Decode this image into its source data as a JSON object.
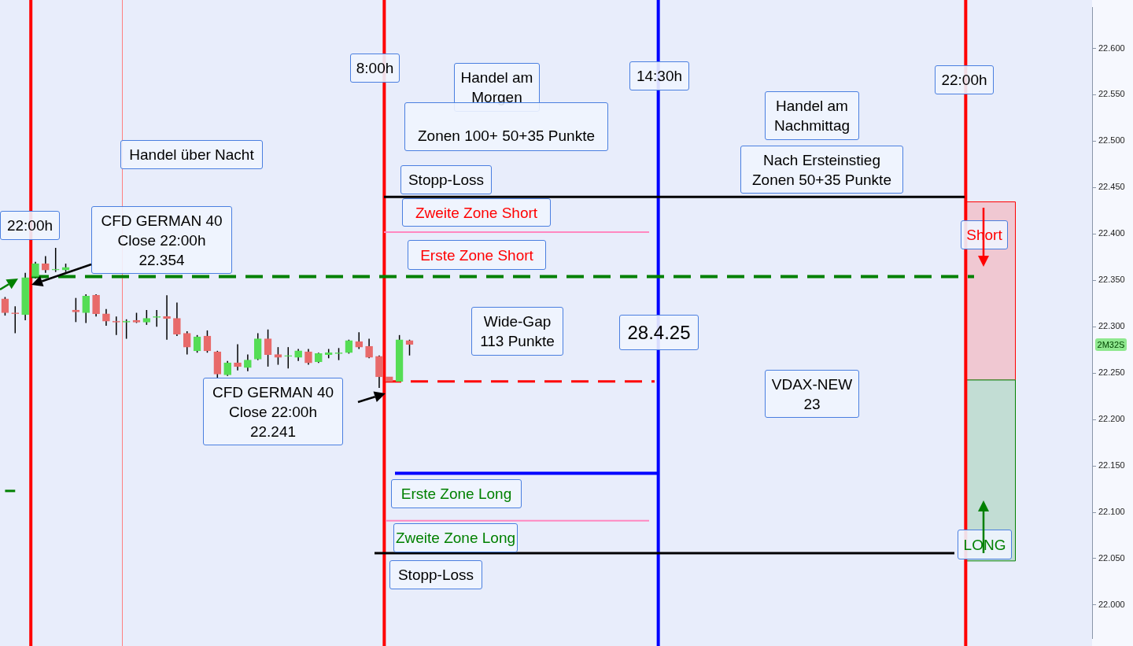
{
  "chart_data": {
    "type": "candlestick",
    "categories": [
      null,
      null,
      null,
      null,
      null,
      null,
      null,
      null,
      null,
      null,
      null,
      null,
      null,
      null,
      null,
      null,
      null,
      null,
      null,
      null,
      null,
      null,
      null,
      null,
      null,
      null,
      null,
      null,
      null,
      null,
      null,
      null,
      null,
      null,
      null,
      null,
      null,
      null,
      null,
      null,
      null,
      null,
      null,
      null,
      null,
      null,
      null,
      null,
      null,
      null,
      null,
      null,
      null,
      null,
      null,
      null,
      null,
      null,
      null,
      null,
      null,
      null,
      null,
      null,
      null,
      null,
      null,
      null,
      null,
      null,
      null,
      null,
      null,
      null,
      null,
      null,
      null,
      null,
      null,
      null,
      null,
      null,
      null,
      null,
      null,
      null,
      null,
      null,
      null,
      null,
      null,
      null,
      null,
      null,
      null,
      null,
      null,
      null,
      null,
      null,
      null,
      null,
      null,
      null,
      null,
      null,
      null,
      null
    ],
    "ohlc": [
      [
        22330,
        22332,
        22312,
        22315
      ],
      [
        22315,
        22322,
        22293,
        22314
      ],
      [
        22313,
        22358,
        22307,
        22353
      ],
      [
        22354,
        22370,
        22352,
        22368
      ],
      [
        22368,
        22376,
        22358,
        22361
      ],
      [
        22361,
        22385,
        22359,
        22362
      ],
      [
        22361,
        22368,
        22359,
        22364
      ],
      [
        22318,
        22331,
        22305,
        22316
      ],
      [
        22315,
        22335,
        22304,
        22333
      ],
      [
        22334,
        22335,
        22311,
        22314
      ],
      [
        22314,
        22319,
        22301,
        22306
      ],
      [
        22306,
        22311,
        22291,
        22305
      ],
      [
        22305,
        22308,
        22287,
        22306
      ],
      [
        22307,
        22315,
        22304,
        22305
      ],
      [
        22305,
        22318,
        22302,
        22309
      ],
      [
        22310,
        22318,
        22300,
        22311
      ],
      [
        22311,
        22334,
        22286,
        22309
      ],
      [
        22309,
        22326,
        22290,
        22292
      ],
      [
        22293,
        22295,
        22270,
        22278
      ],
      [
        22274,
        22291,
        22272,
        22289
      ],
      [
        22290,
        22296,
        22272,
        22274
      ],
      [
        22273,
        22274,
        22244,
        22249
      ],
      [
        22248,
        22263,
        22247,
        22261
      ],
      [
        22261,
        22281,
        22253,
        22257
      ],
      [
        22256,
        22270,
        22252,
        22264
      ],
      [
        22265,
        22293,
        22264,
        22287
      ],
      [
        22287,
        22297,
        22257,
        22270
      ],
      [
        22270,
        22278,
        22259,
        22267
      ],
      [
        22268,
        22278,
        22255,
        22269
      ],
      [
        22267,
        22276,
        22263,
        22274
      ],
      [
        22273,
        22276,
        22259,
        22261
      ],
      [
        22262,
        22272,
        22261,
        22271
      ],
      [
        22270,
        22276,
        22266,
        22272
      ],
      [
        22271,
        22277,
        22264,
        22272
      ],
      [
        22272,
        22286,
        22271,
        22285
      ],
      [
        22284,
        22294,
        22276,
        22278
      ],
      [
        22279,
        22287,
        22266,
        22267
      ],
      [
        22268,
        22269,
        22234,
        22246
      ],
      [
        22246,
        22246,
        22240,
        22241
      ],
      [
        22241,
        22291,
        22241,
        22286
      ],
      [
        22285,
        22286,
        22269,
        22281
      ],
      null,
      null,
      null,
      null,
      null,
      null,
      null,
      null,
      null,
      null,
      null,
      null,
      null,
      null,
      null,
      null,
      null,
      null,
      null,
      null,
      null,
      null,
      null,
      null,
      null,
      null,
      null,
      null,
      null,
      null,
      null,
      null,
      null,
      null,
      null,
      null,
      null,
      null,
      null,
      null,
      null,
      null,
      null,
      null,
      null,
      null,
      null,
      null,
      null,
      null,
      null,
      null,
      null,
      null,
      null,
      null,
      null,
      null,
      null,
      null,
      null,
      null,
      null,
      null,
      null,
      null,
      null
    ],
    "colors": [
      "#e86a6a",
      "#e86a6a",
      "#55dd55",
      "#55dd55",
      "#e86a6a",
      "#55dd55",
      "#55dd55",
      "#e86a6a",
      "#55dd55",
      "#e86a6a",
      "#e86a6a",
      "#e86a6a",
      "#55dd55",
      "#e86a6a",
      "#55dd55",
      "#55dd55",
      "#e86a6a",
      "#e86a6a",
      "#e86a6a",
      "#55dd55",
      "#e86a6a",
      "#e86a6a",
      "#55dd55",
      "#e86a6a",
      "#55dd55",
      "#55dd55",
      "#e86a6a",
      "#e86a6a",
      "#55dd55",
      "#55dd55",
      "#e86a6a",
      "#55dd55",
      "#55dd55",
      "#55dd55",
      "#55dd55",
      "#e86a6a",
      "#e86a6a",
      "#e86a6a",
      "#e86a6a",
      "#55dd55",
      "#e86a6a",
      null,
      null,
      null,
      null,
      null,
      null,
      null,
      null,
      null,
      null,
      null,
      null,
      null,
      null,
      null,
      null,
      null,
      null,
      null,
      null,
      null,
      null,
      null,
      null,
      null,
      null,
      null,
      null,
      null,
      null,
      null,
      null,
      null,
      null,
      null,
      null,
      null,
      null,
      null,
      null,
      null,
      null,
      null,
      null,
      null,
      null,
      null,
      null,
      null,
      null,
      null,
      null,
      null,
      null,
      null,
      null,
      null,
      null,
      null,
      null,
      null,
      null,
      null,
      null,
      null,
      null,
      null
    ],
    "ylim": [
      21964,
      22644
    ],
    "yticks": [
      {
        "value": 22000,
        "label": "22.000"
      },
      {
        "value": 22050,
        "label": "22.050"
      },
      {
        "value": 22100,
        "label": "22.100"
      },
      {
        "value": 22150,
        "label": "22.150"
      },
      {
        "value": 22200,
        "label": "22.200"
      },
      {
        "value": 22250,
        "label": "22.250"
      },
      {
        "value": 22300,
        "label": "22.300"
      },
      {
        "value": 22350,
        "label": "22.350"
      },
      {
        "value": 22400,
        "label": "22.400"
      },
      {
        "value": 22450,
        "label": "22.450"
      },
      {
        "value": 22500,
        "label": "22.500"
      },
      {
        "value": 22550,
        "label": "22.550"
      },
      {
        "value": 22600,
        "label": "22.600"
      }
    ],
    "tick_labels": "y",
    "grid": false,
    "legend": false,
    "ref_lines": [
      {
        "axis": "y",
        "value": 22440,
        "color": "#000000",
        "line_style": "solid"
      },
      {
        "axis": "y",
        "value": 22402,
        "color": "#ff88c0",
        "line_style": "solid"
      },
      {
        "axis": "y",
        "value": 22354,
        "color": "#008000",
        "line_style": "dashed"
      },
      {
        "axis": "y",
        "value": 22241,
        "color": "#ff0000",
        "line_style": "dashed"
      },
      {
        "axis": "y",
        "value": 22142,
        "color": "#0000ff",
        "line_style": "solid"
      },
      {
        "axis": "y",
        "value": 22091,
        "color": "#ff88c0",
        "line_style": "solid"
      },
      {
        "axis": "y",
        "value": 22056,
        "color": "#000000",
        "line_style": "solid"
      }
    ],
    "series": [
      {
        "type": "line",
        "color": "#008000",
        "values": [
          22123,
          22123,
          null,
          null,
          null,
          null,
          null,
          null,
          null,
          null,
          null,
          null,
          null,
          null,
          null,
          null,
          null,
          null,
          null,
          null,
          null,
          null,
          null,
          null,
          null,
          null,
          null,
          null,
          null,
          null,
          null,
          null,
          null,
          null,
          null,
          null,
          null,
          null,
          null,
          null,
          null,
          null,
          null,
          null,
          null,
          null,
          null,
          null,
          null,
          null,
          null,
          null,
          null,
          null,
          null,
          null,
          null,
          null,
          null,
          null,
          null,
          null,
          null,
          null,
          null,
          null,
          null,
          null,
          null,
          null,
          null,
          null,
          null,
          null,
          null,
          null,
          null,
          null,
          null,
          null,
          null,
          null,
          null,
          null,
          null,
          null,
          null,
          null,
          null,
          null,
          null,
          null,
          null,
          null,
          null,
          null,
          null,
          null,
          null,
          null,
          null,
          null,
          null,
          null,
          null,
          null,
          null,
          null
        ]
      }
    ],
    "bands": [
      {
        "axis": "y",
        "from": 22243,
        "to": 22435,
        "color": "#f0c8d2"
      },
      {
        "axis": "y",
        "from": 22048,
        "to": 22243,
        "color": "#c2ddd4"
      }
    ],
    "annotations": [
      "8:00h",
      "Handel am\nMorgen",
      "Zonen 100+ 50+35 Punkte",
      "14:30h",
      "22:00h",
      "Handel am\nNachmittag",
      "Nach Ersteinstieg\nZonen 50+35 Punkte",
      "Handel über Nacht",
      "22:00h",
      "CFD GERMAN 40\nClose 22:00h\n22.354",
      "Stopp-Loss",
      "Zweite Zone Short",
      "Erste Zone Short",
      "Wide-Gap\n113 Punkte",
      "28.4.25",
      "Short",
      "CFD GERMAN 40\nClose 22:00h\n22.241",
      "VDAX-NEW\n23",
      "Erste Zone Long",
      "Zweite  Zone Long",
      "LONG",
      "Stopp-Loss",
      "2M32S"
    ]
  }
}
